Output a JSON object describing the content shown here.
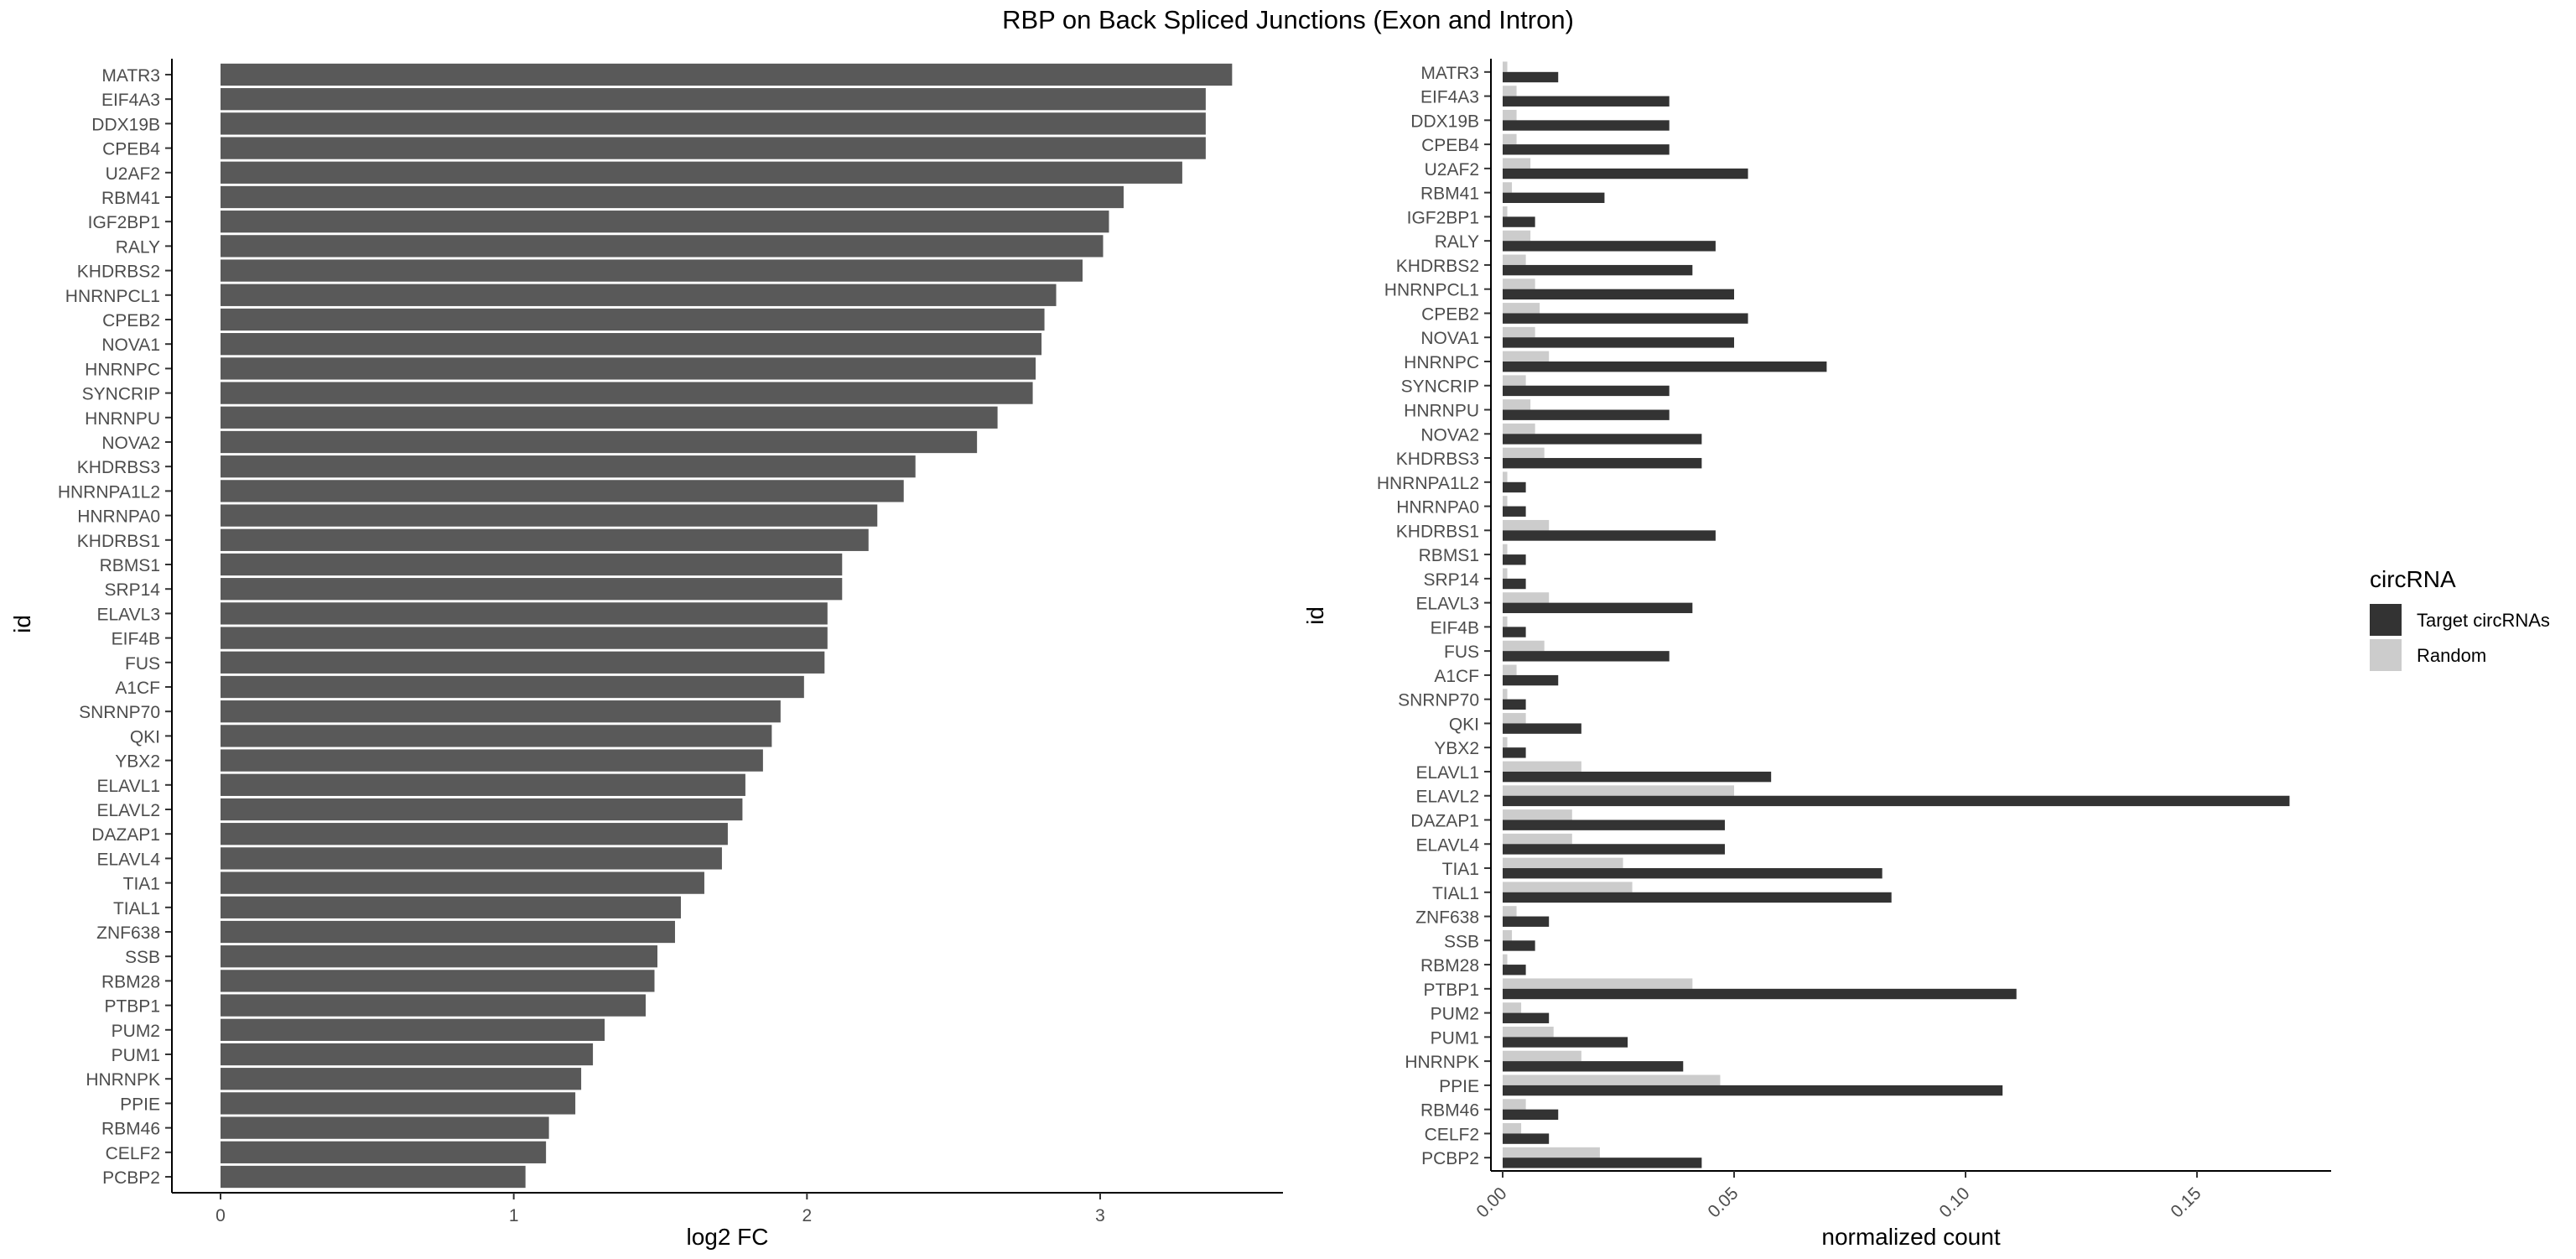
{
  "title": "RBP on Back Spliced Junctions (Exon and Intron)",
  "colors": {
    "bar_left": "#595959",
    "target": "#333333",
    "random": "#cccccc",
    "axis": "#000000",
    "tick_text": "#4d4d4d"
  },
  "chart_data": [
    {
      "type": "bar",
      "orientation": "horizontal",
      "xlabel": "log2 FC",
      "ylabel": "id",
      "xlim": [
        0,
        3.6
      ],
      "xticks": [
        0,
        1,
        2,
        3
      ],
      "grid": false,
      "categories": [
        "MATR3",
        "EIF4A3",
        "DDX19B",
        "CPEB4",
        "U2AF2",
        "RBM41",
        "IGF2BP1",
        "RALY",
        "KHDRBS2",
        "HNRNPCL1",
        "CPEB2",
        "NOVA1",
        "HNRNPC",
        "SYNCRIP",
        "HNRNPU",
        "NOVA2",
        "KHDRBS3",
        "HNRNPA1L2",
        "HNRNPA0",
        "KHDRBS1",
        "RBMS1",
        "SRP14",
        "ELAVL3",
        "EIF4B",
        "FUS",
        "A1CF",
        "SNRNP70",
        "QKI",
        "YBX2",
        "ELAVL1",
        "ELAVL2",
        "DAZAP1",
        "ELAVL4",
        "TIA1",
        "TIAL1",
        "ZNF638",
        "SSB",
        "RBM28",
        "PTBP1",
        "PUM2",
        "PUM1",
        "HNRNPK",
        "PPIE",
        "RBM46",
        "CELF2",
        "PCBP2"
      ],
      "values": [
        3.45,
        3.36,
        3.36,
        3.36,
        3.28,
        3.08,
        3.03,
        3.01,
        2.94,
        2.85,
        2.81,
        2.8,
        2.78,
        2.77,
        2.65,
        2.58,
        2.37,
        2.33,
        2.24,
        2.21,
        2.12,
        2.12,
        2.07,
        2.07,
        2.06,
        1.99,
        1.91,
        1.88,
        1.85,
        1.79,
        1.78,
        1.73,
        1.71,
        1.65,
        1.57,
        1.55,
        1.49,
        1.48,
        1.45,
        1.31,
        1.27,
        1.23,
        1.21,
        1.12,
        1.11,
        1.04
      ]
    },
    {
      "type": "bar",
      "orientation": "horizontal",
      "xlabel": "normalized count",
      "ylabel": "id",
      "xlim": [
        0,
        0.178
      ],
      "xticks": [
        "0.00",
        "0.05",
        "0.10",
        "0.15"
      ],
      "grid": false,
      "legend": {
        "title": "circRNA",
        "position": "right"
      },
      "categories": [
        "MATR3",
        "EIF4A3",
        "DDX19B",
        "CPEB4",
        "U2AF2",
        "RBM41",
        "IGF2BP1",
        "RALY",
        "KHDRBS2",
        "HNRNPCL1",
        "CPEB2",
        "NOVA1",
        "HNRNPC",
        "SYNCRIP",
        "HNRNPU",
        "NOVA2",
        "KHDRBS3",
        "HNRNPA1L2",
        "HNRNPA0",
        "KHDRBS1",
        "RBMS1",
        "SRP14",
        "ELAVL3",
        "EIF4B",
        "FUS",
        "A1CF",
        "SNRNP70",
        "QKI",
        "YBX2",
        "ELAVL1",
        "ELAVL2",
        "DAZAP1",
        "ELAVL4",
        "TIA1",
        "TIAL1",
        "ZNF638",
        "SSB",
        "RBM28",
        "PTBP1",
        "PUM2",
        "PUM1",
        "HNRNPK",
        "PPIE",
        "RBM46",
        "CELF2",
        "PCBP2"
      ],
      "series": [
        {
          "name": "Target circRNAs",
          "values": [
            0.012,
            0.036,
            0.036,
            0.036,
            0.053,
            0.022,
            0.007,
            0.046,
            0.041,
            0.05,
            0.053,
            0.05,
            0.07,
            0.036,
            0.036,
            0.043,
            0.043,
            0.005,
            0.005,
            0.046,
            0.005,
            0.005,
            0.041,
            0.005,
            0.036,
            0.012,
            0.005,
            0.017,
            0.005,
            0.058,
            0.17,
            0.048,
            0.048,
            0.082,
            0.084,
            0.01,
            0.007,
            0.005,
            0.111,
            0.01,
            0.027,
            0.039,
            0.108,
            0.012,
            0.01,
            0.043
          ]
        },
        {
          "name": "Random",
          "values": [
            0.001,
            0.003,
            0.003,
            0.003,
            0.006,
            0.002,
            0.001,
            0.006,
            0.005,
            0.007,
            0.008,
            0.007,
            0.01,
            0.005,
            0.006,
            0.007,
            0.009,
            0.001,
            0.001,
            0.01,
            0.001,
            0.001,
            0.01,
            0.001,
            0.009,
            0.003,
            0.001,
            0.005,
            0.001,
            0.017,
            0.05,
            0.015,
            0.015,
            0.026,
            0.028,
            0.003,
            0.002,
            0.001,
            0.041,
            0.004,
            0.011,
            0.017,
            0.047,
            0.005,
            0.004,
            0.021
          ]
        }
      ]
    }
  ]
}
